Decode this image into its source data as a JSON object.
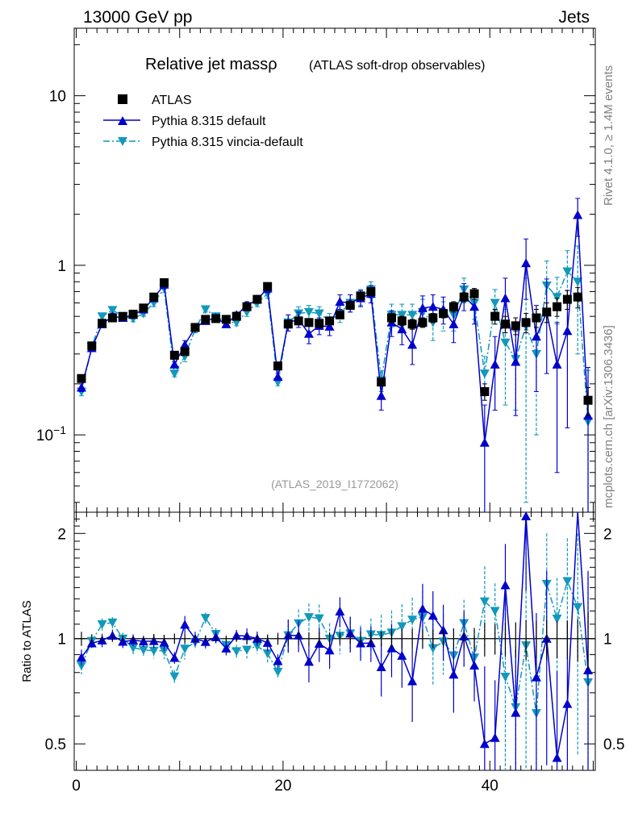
{
  "header": {
    "left": "13000 GeV pp",
    "right": "Jets"
  },
  "side_text": {
    "top": "Rivet 4.1.0, ≥ 1.4M events",
    "bottom": "mcplots.cern.ch [arXiv:1306.3436]"
  },
  "chart_data": {
    "type": "line",
    "title": "Relative jet massρ",
    "subtitle": "(ATLAS soft-drop observables)",
    "watermark": "(ATLAS_2019_I1772062)",
    "xlabel": "",
    "ylabel_ratio": "Ratio to ATLAS",
    "xlim": [
      -0.2,
      50.2
    ],
    "ylim_main": [
      0.035,
      25
    ],
    "ylim_ratio": [
      0.42,
      2.3
    ],
    "yscale_main": "log",
    "yscale_ratio": "log",
    "x_ticks": [
      "0",
      "20",
      "40"
    ],
    "y_ticks_main": [
      "10",
      "1",
      "10−1"
    ],
    "y_ticks_ratio": [
      "2",
      "1",
      "0.5"
    ],
    "legend_position": "top-left",
    "x": [
      0.5,
      1.5,
      2.5,
      3.5,
      4.5,
      5.5,
      6.5,
      7.5,
      8.5,
      9.5,
      10.5,
      11.5,
      12.5,
      13.5,
      14.5,
      15.5,
      16.5,
      17.5,
      18.5,
      19.5,
      20.5,
      21.5,
      22.5,
      23.5,
      24.5,
      25.5,
      26.5,
      27.5,
      28.5,
      29.5,
      30.5,
      31.5,
      32.5,
      33.5,
      34.5,
      35.5,
      36.5,
      37.5,
      38.5,
      39.5,
      40.5,
      41.5,
      42.5,
      43.5,
      44.5,
      45.5,
      46.5,
      47.5,
      48.5,
      49.5
    ],
    "series": [
      {
        "name": "ATLAS",
        "style": "data",
        "color": "#000000",
        "values": [
          0.215,
          0.335,
          0.455,
          0.49,
          0.5,
          0.515,
          0.56,
          0.65,
          0.79,
          0.295,
          0.31,
          0.43,
          0.48,
          0.485,
          0.48,
          0.5,
          0.57,
          0.63,
          0.75,
          0.255,
          0.45,
          0.47,
          0.46,
          0.455,
          0.47,
          0.51,
          0.58,
          0.66,
          0.7,
          0.205,
          0.49,
          0.47,
          0.45,
          0.46,
          0.49,
          0.52,
          0.57,
          0.65,
          0.68,
          0.18,
          0.5,
          0.45,
          0.44,
          0.46,
          0.49,
          0.53,
          0.57,
          0.63,
          0.65,
          0.16
        ],
        "errors": [
          0.01,
          0.01,
          0.01,
          0.01,
          0.01,
          0.01,
          0.01,
          0.02,
          0.02,
          0.01,
          0.01,
          0.01,
          0.01,
          0.01,
          0.01,
          0.01,
          0.02,
          0.02,
          0.02,
          0.01,
          0.02,
          0.02,
          0.02,
          0.02,
          0.02,
          0.02,
          0.02,
          0.03,
          0.03,
          0.01,
          0.03,
          0.03,
          0.03,
          0.03,
          0.03,
          0.03,
          0.04,
          0.04,
          0.05,
          0.02,
          0.05,
          0.05,
          0.05,
          0.06,
          0.06,
          0.07,
          0.07,
          0.08,
          0.09,
          0.03
        ]
      },
      {
        "name": "Pythia 8.315 default",
        "style": "solid",
        "color": "#0000cc",
        "values": [
          0.19,
          0.325,
          0.45,
          0.5,
          0.49,
          0.51,
          0.55,
          0.64,
          0.77,
          0.26,
          0.34,
          0.43,
          0.47,
          0.49,
          0.45,
          0.51,
          0.58,
          0.63,
          0.73,
          0.22,
          0.46,
          0.48,
          0.395,
          0.44,
          0.435,
          0.61,
          0.6,
          0.64,
          0.68,
          0.17,
          0.46,
          0.42,
          0.34,
          0.56,
          0.57,
          0.55,
          0.45,
          0.66,
          0.57,
          0.09,
          0.26,
          0.64,
          0.27,
          1.03,
          0.38,
          0.53,
          0.26,
          0.41,
          1.98,
          0.13
        ],
        "errors": [
          0.01,
          0.01,
          0.02,
          0.02,
          0.02,
          0.02,
          0.02,
          0.03,
          0.04,
          0.01,
          0.02,
          0.02,
          0.02,
          0.02,
          0.02,
          0.02,
          0.03,
          0.03,
          0.04,
          0.01,
          0.05,
          0.05,
          0.05,
          0.05,
          0.05,
          0.06,
          0.07,
          0.07,
          0.08,
          0.03,
          0.08,
          0.08,
          0.08,
          0.1,
          0.1,
          0.1,
          0.1,
          0.12,
          0.12,
          0.06,
          0.12,
          0.2,
          0.14,
          0.4,
          0.2,
          0.3,
          0.2,
          0.3,
          0.5,
          0.12
        ]
      },
      {
        "name": "Pythia 8.315 vincia-default",
        "style": "dashdot",
        "color": "#1199bb",
        "values": [
          0.18,
          0.33,
          0.5,
          0.545,
          0.5,
          0.485,
          0.52,
          0.6,
          0.73,
          0.23,
          0.29,
          0.42,
          0.55,
          0.5,
          0.46,
          0.46,
          0.53,
          0.6,
          0.68,
          0.205,
          0.46,
          0.52,
          0.53,
          0.52,
          0.47,
          0.52,
          0.6,
          0.65,
          0.72,
          0.21,
          0.51,
          0.51,
          0.51,
          0.53,
          0.46,
          0.51,
          0.51,
          0.72,
          0.6,
          0.23,
          0.6,
          0.35,
          0.28,
          0.44,
          0.3,
          0.76,
          0.65,
          0.92,
          0.8,
          0.12
        ],
        "errors": [
          0.01,
          0.01,
          0.02,
          0.02,
          0.02,
          0.02,
          0.02,
          0.03,
          0.04,
          0.01,
          0.02,
          0.02,
          0.02,
          0.02,
          0.02,
          0.02,
          0.03,
          0.03,
          0.04,
          0.01,
          0.05,
          0.05,
          0.05,
          0.05,
          0.05,
          0.06,
          0.07,
          0.07,
          0.08,
          0.03,
          0.08,
          0.08,
          0.08,
          0.1,
          0.1,
          0.1,
          0.1,
          0.12,
          0.12,
          0.06,
          0.12,
          0.2,
          0.14,
          0.4,
          0.2,
          0.3,
          0.2,
          0.3,
          0.5,
          0.12
        ]
      }
    ]
  }
}
